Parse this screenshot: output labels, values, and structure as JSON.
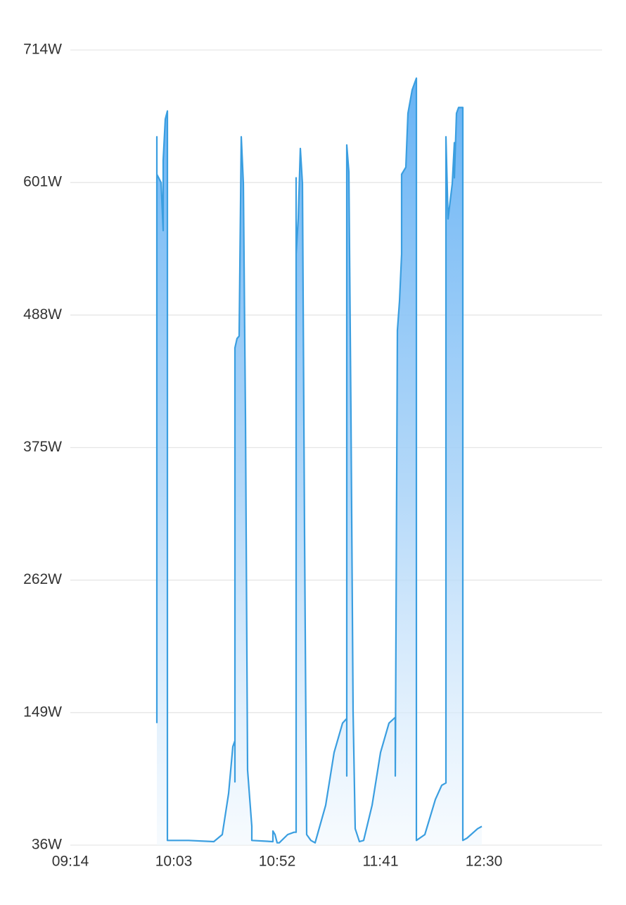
{
  "chart_data": {
    "type": "area",
    "title": "",
    "xlabel": "",
    "ylabel": "",
    "y_ticks": [
      "714W",
      "601W",
      "488W",
      "375W",
      "262W",
      "149W",
      "36W"
    ],
    "y_tick_values": [
      714,
      601,
      488,
      375,
      262,
      149,
      36
    ],
    "x_ticks": [
      "09:14",
      "10:03",
      "10:52",
      "11:41",
      "12:30"
    ],
    "x_tick_minutes": [
      554,
      603,
      652,
      701,
      750
    ],
    "ylim": [
      36,
      714
    ],
    "xlim": [
      "09:14",
      "13:26"
    ],
    "grid": true,
    "legend": "none",
    "colors": {
      "line": "#3a9ee0",
      "fill_top": "#64b1f4",
      "fill_bottom": "#f1f8fe",
      "grid": "#e6e6e6",
      "text": "#333333"
    },
    "series": [
      {
        "points": [
          [
            "09:55",
            140
          ],
          [
            "09:55",
            640
          ],
          [
            "09:55",
            608
          ],
          [
            "09:57",
            601
          ],
          [
            "09:58",
            560
          ],
          [
            "09:58",
            620
          ],
          [
            "09:59",
            655
          ],
          [
            "10:00",
            662
          ],
          [
            "10:00",
            40
          ],
          [
            "10:10",
            40
          ],
          [
            "10:22",
            39
          ],
          [
            "10:26",
            45
          ],
          [
            "10:29",
            80
          ],
          [
            "10:31",
            120
          ],
          [
            "10:32",
            125
          ],
          [
            "10:32",
            90
          ],
          [
            "10:32",
            460
          ],
          [
            "10:33",
            468
          ],
          [
            "10:34",
            470
          ],
          [
            "10:35",
            640
          ],
          [
            "10:36",
            600
          ],
          [
            "10:37",
            400
          ],
          [
            "10:38",
            100
          ],
          [
            "10:40",
            52
          ],
          [
            "10:40",
            40
          ],
          [
            "10:50",
            39
          ],
          [
            "10:50",
            48
          ],
          [
            "10:51",
            45
          ],
          [
            "10:52",
            38
          ],
          [
            "10:53",
            38
          ],
          [
            "10:57",
            45
          ],
          [
            "11:00",
            47
          ],
          [
            "11:01",
            47
          ],
          [
            "11:01",
            605
          ],
          [
            "11:01",
            540
          ],
          [
            "11:02",
            570
          ],
          [
            "11:03",
            630
          ],
          [
            "11:04",
            600
          ],
          [
            "11:05",
            300
          ],
          [
            "11:06",
            45
          ],
          [
            "11:08",
            40
          ],
          [
            "11:10",
            38
          ],
          [
            "11:15",
            70
          ],
          [
            "11:19",
            115
          ],
          [
            "11:23",
            140
          ],
          [
            "11:25",
            144
          ],
          [
            "11:25",
            95
          ],
          [
            "11:25",
            633
          ],
          [
            "11:26",
            610
          ],
          [
            "11:27",
            400
          ],
          [
            "11:28",
            150
          ],
          [
            "11:29",
            50
          ],
          [
            "11:31",
            39
          ],
          [
            "11:33",
            40
          ],
          [
            "11:37",
            70
          ],
          [
            "11:41",
            115
          ],
          [
            "11:45",
            140
          ],
          [
            "11:48",
            145
          ],
          [
            "11:48",
            95
          ],
          [
            "11:49",
            475
          ],
          [
            "11:50",
            500
          ],
          [
            "11:51",
            540
          ],
          [
            "11:51",
            555
          ],
          [
            "11:51",
            608
          ],
          [
            "11:53",
            614
          ],
          [
            "11:54",
            660
          ],
          [
            "11:56",
            680
          ],
          [
            "11:58",
            690
          ],
          [
            "11:58",
            40
          ],
          [
            "12:02",
            45
          ],
          [
            "12:07",
            75
          ],
          [
            "12:10",
            87
          ],
          [
            "12:12",
            89
          ],
          [
            "12:12",
            640
          ],
          [
            "12:13",
            570
          ],
          [
            "12:15",
            600
          ],
          [
            "12:16",
            635
          ],
          [
            "12:16",
            605
          ],
          [
            "12:17",
            660
          ],
          [
            "12:18",
            665
          ],
          [
            "12:20",
            665
          ],
          [
            "12:20",
            40
          ],
          [
            "12:22",
            42
          ],
          [
            "12:27",
            50
          ],
          [
            "12:29",
            52
          ]
        ]
      }
    ]
  }
}
